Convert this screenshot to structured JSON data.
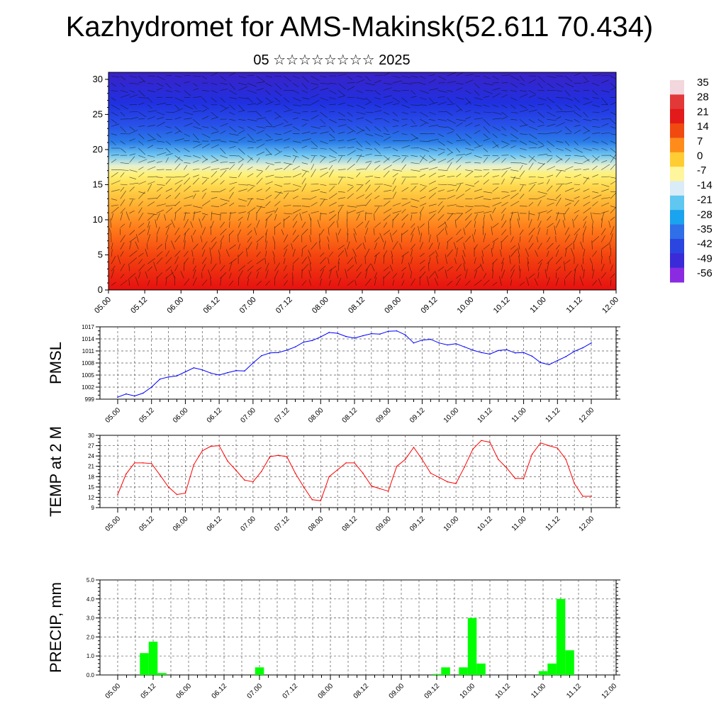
{
  "page": {
    "title": "Kazhydromet for AMS-Makinsk(52.611 70.434)",
    "subtitle": "05 ☆☆☆☆☆☆☆☆ 2025"
  },
  "chart_data": [
    {
      "type": "heatmap",
      "name": "vertical profile (temperature shading with wind barbs)",
      "xlabel": "",
      "ylabel": "",
      "x_ticks": [
        "05.00",
        "05.12",
        "06.00",
        "06.12",
        "07.00",
        "07.12",
        "08.00",
        "08.12",
        "09.00",
        "09.12",
        "10.00",
        "10.12",
        "11.00",
        "11.12",
        "12.00"
      ],
      "y_ticks": [
        0,
        5,
        10,
        15,
        20,
        25,
        30
      ],
      "ylim": [
        0,
        31
      ],
      "colorbar_labels": [
        "35",
        "28",
        "21",
        "14",
        "7",
        "0",
        "-7",
        "-14",
        "-21",
        "-28",
        "-35",
        "-42",
        "-49",
        "-56"
      ],
      "colorbar_colors": [
        "#f2d7dc",
        "#e33838",
        "#e31a1a",
        "#f04a10",
        "#ff8c1a",
        "#ffcc33",
        "#fff59d",
        "#d9ecf7",
        "#5fc7f0",
        "#1aa3ee",
        "#2f6fe8",
        "#2a45e0",
        "#3a2ad8",
        "#8a2be2"
      ],
      "colors": {
        "warm_surface": "#e80c0c",
        "cold_top": "#2a20c8"
      }
    },
    {
      "type": "line",
      "ylabel": "PMSL",
      "color": "#0000ff",
      "ylim": [
        999,
        1017
      ],
      "y_ticks": [
        999,
        1002,
        1005,
        1008,
        1011,
        1014,
        1017
      ],
      "x_ticks": [
        "05.00",
        "05.12",
        "06.00",
        "06.12",
        "07.00",
        "07.12",
        "08.00",
        "08.12",
        "09.00",
        "09.12",
        "10.00",
        "10.12",
        "11.00",
        "11.12",
        "12.00"
      ],
      "x": [
        0,
        3,
        6,
        9,
        12,
        15,
        18,
        21,
        24,
        27,
        30,
        33,
        36,
        39,
        42,
        45,
        48,
        51,
        54,
        57,
        60,
        63,
        66,
        69,
        72,
        75,
        78,
        81,
        84,
        87,
        90,
        93,
        96,
        99,
        102,
        105,
        108,
        111,
        114,
        117,
        120,
        123,
        126,
        129,
        132,
        135,
        138,
        141,
        144,
        147,
        150,
        153,
        156,
        159,
        162,
        165,
        168
      ],
      "values": [
        999.5,
        1000.3,
        999.8,
        1000.5,
        1002.0,
        1004.0,
        1004.5,
        1004.8,
        1005.8,
        1006.8,
        1006.3,
        1005.5,
        1005.0,
        1005.6,
        1006.1,
        1006.0,
        1008.0,
        1009.8,
        1010.5,
        1010.6,
        1011.2,
        1012.0,
        1013.2,
        1013.6,
        1014.5,
        1015.6,
        1015.4,
        1014.6,
        1014.2,
        1014.8,
        1015.3,
        1015.2,
        1015.9,
        1016.0,
        1015.0,
        1013.0,
        1013.7,
        1013.9,
        1013.0,
        1012.5,
        1012.8,
        1012.0,
        1011.2,
        1010.6,
        1010.2,
        1011.1,
        1011.3,
        1010.5,
        1010.6,
        1009.7,
        1008.1,
        1007.6,
        1008.6,
        1009.6,
        1010.9,
        1011.8,
        1013.0
      ]
    },
    {
      "type": "line",
      "ylabel": "TEMP at 2 M",
      "color": "#ff0000",
      "ylim": [
        9,
        30
      ],
      "y_ticks": [
        9,
        12,
        15,
        18,
        21,
        24,
        27,
        30
      ],
      "x_ticks": [
        "05.00",
        "05.12",
        "06.00",
        "06.12",
        "07.00",
        "07.12",
        "08.00",
        "08.12",
        "09.00",
        "09.12",
        "10.00",
        "10.12",
        "11.00",
        "11.12",
        "12.00"
      ],
      "x": [
        0,
        3,
        6,
        9,
        12,
        15,
        18,
        21,
        24,
        27,
        30,
        33,
        36,
        39,
        42,
        45,
        48,
        51,
        54,
        57,
        60,
        63,
        66,
        69,
        72,
        75,
        78,
        81,
        84,
        87,
        90,
        93,
        96,
        99,
        102,
        105,
        108,
        111,
        114,
        117,
        120,
        123,
        126,
        129,
        132,
        135,
        138,
        141,
        144,
        147,
        150,
        153,
        156,
        159,
        162,
        165,
        168
      ],
      "values": [
        12.8,
        18.8,
        22.0,
        22.0,
        21.8,
        18.5,
        15.0,
        12.8,
        13.2,
        21.5,
        25.5,
        26.8,
        27.0,
        22.5,
        19.8,
        17.0,
        16.5,
        19.5,
        23.8,
        24.2,
        23.8,
        19.0,
        15.0,
        11.3,
        11.0,
        18.0,
        20.0,
        22.0,
        22.0,
        19.0,
        15.3,
        14.5,
        13.8,
        21.0,
        23.0,
        26.5,
        23.0,
        19.0,
        17.8,
        16.5,
        16.0,
        20.8,
        26.0,
        28.5,
        28.0,
        23.0,
        20.5,
        17.5,
        17.5,
        24.5,
        27.8,
        27.0,
        26.3,
        23.0,
        16.0,
        12.3,
        12.3
      ]
    },
    {
      "type": "bar",
      "ylabel": "PRECIP, mm",
      "color": "#00ff00",
      "ylim": [
        0,
        5
      ],
      "y_ticks": [
        "0.0",
        "1.0",
        "2.0",
        "3.0",
        "4.0",
        "5.0"
      ],
      "x_ticks": [
        "05.00",
        "05.12",
        "06.00",
        "06.12",
        "07.00",
        "07.12",
        "08.00",
        "08.12",
        "09.00",
        "09.12",
        "10.00",
        "10.12",
        "11.00",
        "11.12",
        "12.00"
      ],
      "x": [
        9,
        12,
        15,
        48,
        108,
        111,
        117,
        120,
        123,
        144,
        147,
        150,
        153
      ],
      "values": [
        1.15,
        1.75,
        0.1,
        0.4,
        0.05,
        0.4,
        0.4,
        3.0,
        0.6,
        0.2,
        0.6,
        4.0,
        1.3
      ]
    }
  ]
}
